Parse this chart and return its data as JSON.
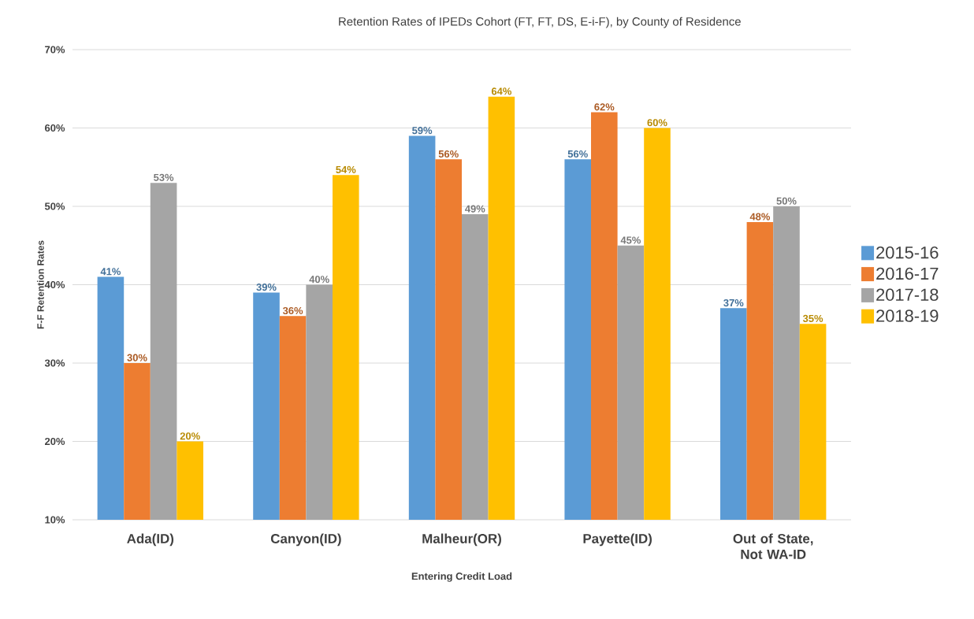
{
  "chart_data": {
    "type": "bar",
    "title": "Retention Rates of IPEDs Cohort (FT, FT, DS, E-i-F), by County of Residence",
    "xlabel": "Entering Credit Load",
    "ylabel": "F-F Retention Rates",
    "categories": [
      "Ada(ID)",
      "Canyon(ID)",
      "Malheur(OR)",
      "Payette(ID)",
      "Out of State, Not WA-ID"
    ],
    "series": [
      {
        "name": "2015-16",
        "color": "#5b9bd5",
        "values": [
          41,
          39,
          59,
          56,
          37
        ],
        "value_labels": [
          "41%",
          "39%",
          "59%",
          "56%",
          "37%"
        ]
      },
      {
        "name": "2016-17",
        "color": "#ed7d31",
        "values": [
          30,
          36,
          56,
          62,
          48
        ],
        "value_labels": [
          "30%",
          "36%",
          "56%",
          "62%",
          "48%"
        ]
      },
      {
        "name": "2017-18",
        "color": "#a5a5a5",
        "values": [
          53,
          40,
          49,
          45,
          50
        ],
        "value_labels": [
          "53%",
          "40%",
          "49%",
          "45%",
          "50%"
        ]
      },
      {
        "name": "2018-19",
        "color": "#ffc000",
        "values": [
          20,
          54,
          64,
          60,
          35
        ],
        "value_labels": [
          "20%",
          "54%",
          "64%",
          "60%",
          "35%"
        ]
      }
    ],
    "ylim": [
      10,
      70
    ],
    "yticks": [
      {
        "value": 10,
        "label": "10%"
      },
      {
        "value": 20,
        "label": "20%"
      },
      {
        "value": 30,
        "label": "30%"
      },
      {
        "value": 40,
        "label": "40%"
      },
      {
        "value": 50,
        "label": "50%"
      },
      {
        "value": 60,
        "label": "60%"
      },
      {
        "value": 70,
        "label": "70%"
      }
    ],
    "grid": "y",
    "legend": "right"
  }
}
